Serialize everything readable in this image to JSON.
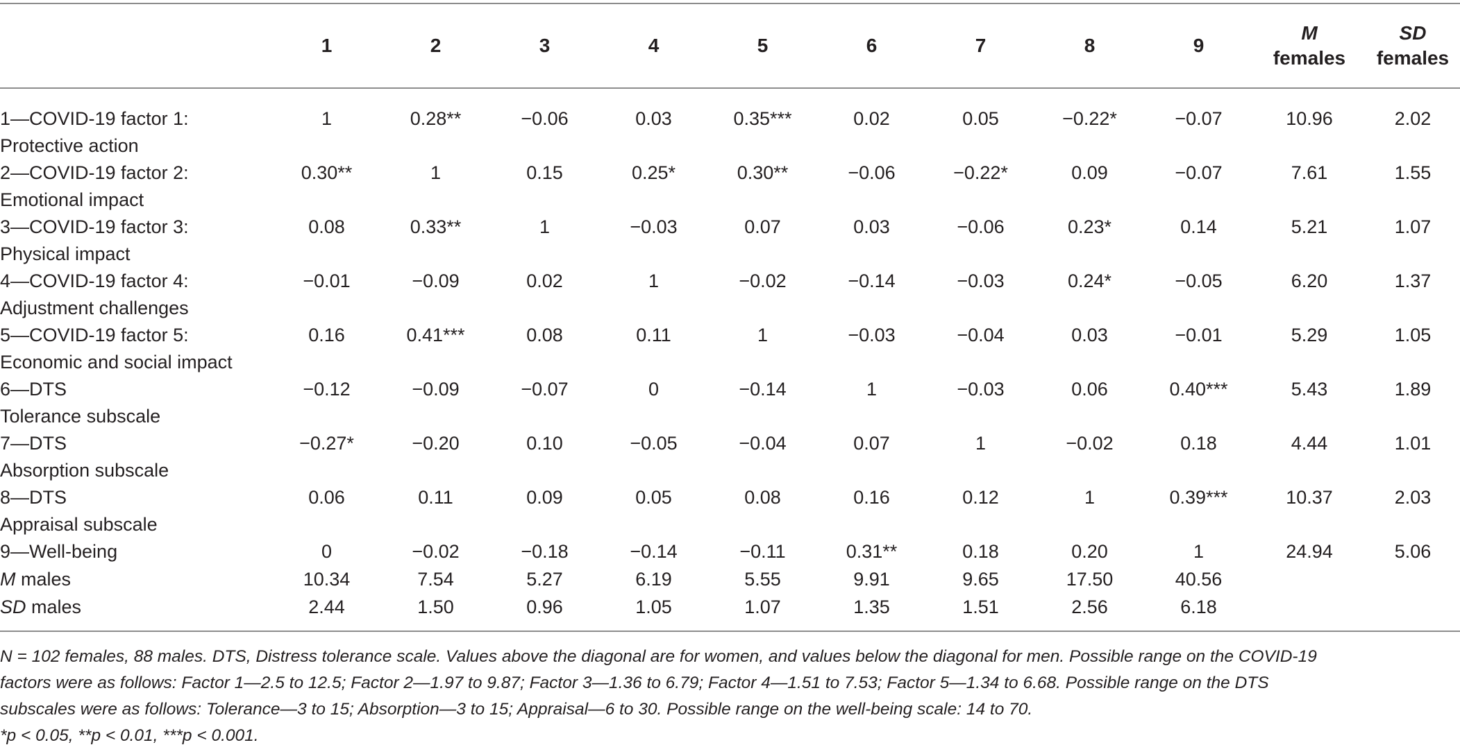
{
  "table": {
    "header_top_labels": [
      "",
      "1",
      "2",
      "3",
      "4",
      "5",
      "6",
      "7",
      "8",
      "9",
      "M",
      "SD"
    ],
    "header_bottom_labels": [
      "",
      "",
      "",
      "",
      "",
      "",
      "",
      "",
      "",
      "",
      "females",
      "females"
    ],
    "rows": [
      {
        "label_line1": "1—COVID-19 factor 1:",
        "label_line2": "Protective action",
        "cells": [
          "1",
          "0.28**",
          "−0.06",
          "0.03",
          "0.35***",
          "0.02",
          "0.05",
          "−0.22*",
          "−0.07",
          "10.96",
          "2.02"
        ]
      },
      {
        "label_line1": "2—COVID-19 factor 2:",
        "label_line2": "Emotional impact",
        "cells": [
          "0.30**",
          "1",
          "0.15",
          "0.25*",
          "0.30**",
          "−0.06",
          "−0.22*",
          "0.09",
          "−0.07",
          "7.61",
          "1.55"
        ]
      },
      {
        "label_line1": "3—COVID-19 factor 3:",
        "label_line2": "Physical impact",
        "cells": [
          "0.08",
          "0.33**",
          "1",
          "−0.03",
          "0.07",
          "0.03",
          "−0.06",
          "0.23*",
          "0.14",
          "5.21",
          "1.07"
        ]
      },
      {
        "label_line1": "4—COVID-19 factor 4:",
        "label_line2": "Adjustment challenges",
        "cells": [
          "−0.01",
          "−0.09",
          "0.02",
          "1",
          "−0.02",
          "−0.14",
          "−0.03",
          "0.24*",
          "−0.05",
          "6.20",
          "1.37"
        ]
      },
      {
        "label_line1": "5—COVID-19 factor 5:",
        "label_line2": "Economic and social impact",
        "cells": [
          "0.16",
          "0.41***",
          "0.08",
          "0.11",
          "1",
          "−0.03",
          "−0.04",
          "0.03",
          "−0.01",
          "5.29",
          "1.05"
        ]
      },
      {
        "label_line1": "6—DTS",
        "label_line2": "Tolerance subscale",
        "cells": [
          "−0.12",
          "−0.09",
          "−0.07",
          "0",
          "−0.14",
          "1",
          "−0.03",
          "0.06",
          "0.40***",
          "5.43",
          "1.89"
        ]
      },
      {
        "label_line1": "7—DTS",
        "label_line2": "Absorption subscale",
        "cells": [
          "−0.27*",
          "−0.20",
          "0.10",
          "−0.05",
          "−0.04",
          "0.07",
          "1",
          "−0.02",
          "0.18",
          "4.44",
          "1.01"
        ]
      },
      {
        "label_line1": "8—DTS",
        "label_line2": "Appraisal subscale",
        "cells": [
          "0.06",
          "0.11",
          "0.09",
          "0.05",
          "0.08",
          "0.16",
          "0.12",
          "1",
          "0.39***",
          "10.37",
          "2.03"
        ]
      },
      {
        "label_line1": "9—Well-being",
        "label_line2": "",
        "cells": [
          "0",
          "−0.02",
          "−0.18",
          "−0.14",
          "−0.11",
          "0.31**",
          "0.18",
          "0.20",
          "1",
          "24.94",
          "5.06"
        ]
      }
    ],
    "m_males": {
      "label_italic": "M",
      "label_rest": " males",
      "cells": [
        "10.34",
        "7.54",
        "5.27",
        "6.19",
        "5.55",
        "9.91",
        "9.65",
        "17.50",
        "40.56",
        "",
        ""
      ]
    },
    "sd_males": {
      "label_italic": "SD",
      "label_rest": " males",
      "cells": [
        "2.44",
        "1.50",
        "0.96",
        "1.05",
        "1.07",
        "1.35",
        "1.51",
        "2.56",
        "6.18",
        "",
        ""
      ]
    }
  },
  "footnote": {
    "line1": "N = 102 females,   88 males. DTS, Distress tolerance scale. Values above the diagonal are for women, and values below the diagonal for men. Possible range on the COVID-19",
    "line2": "factors were as follows: Factor 1—2.5 to 12.5; Factor 2—1.97 to 9.87; Factor 3—1.36 to 6.79; Factor 4—1.51 to 7.53; Factor 5—1.34 to 6.68. Possible range on the DTS",
    "line3": "subscales were as follows: Tolerance—3 to 15; Absorption—3 to 15; Appraisal—6 to 30. Possible range on the well-being scale: 14 to 70.",
    "line4": "*p < 0.05,   **p < 0.01,   ***p < 0.001."
  }
}
